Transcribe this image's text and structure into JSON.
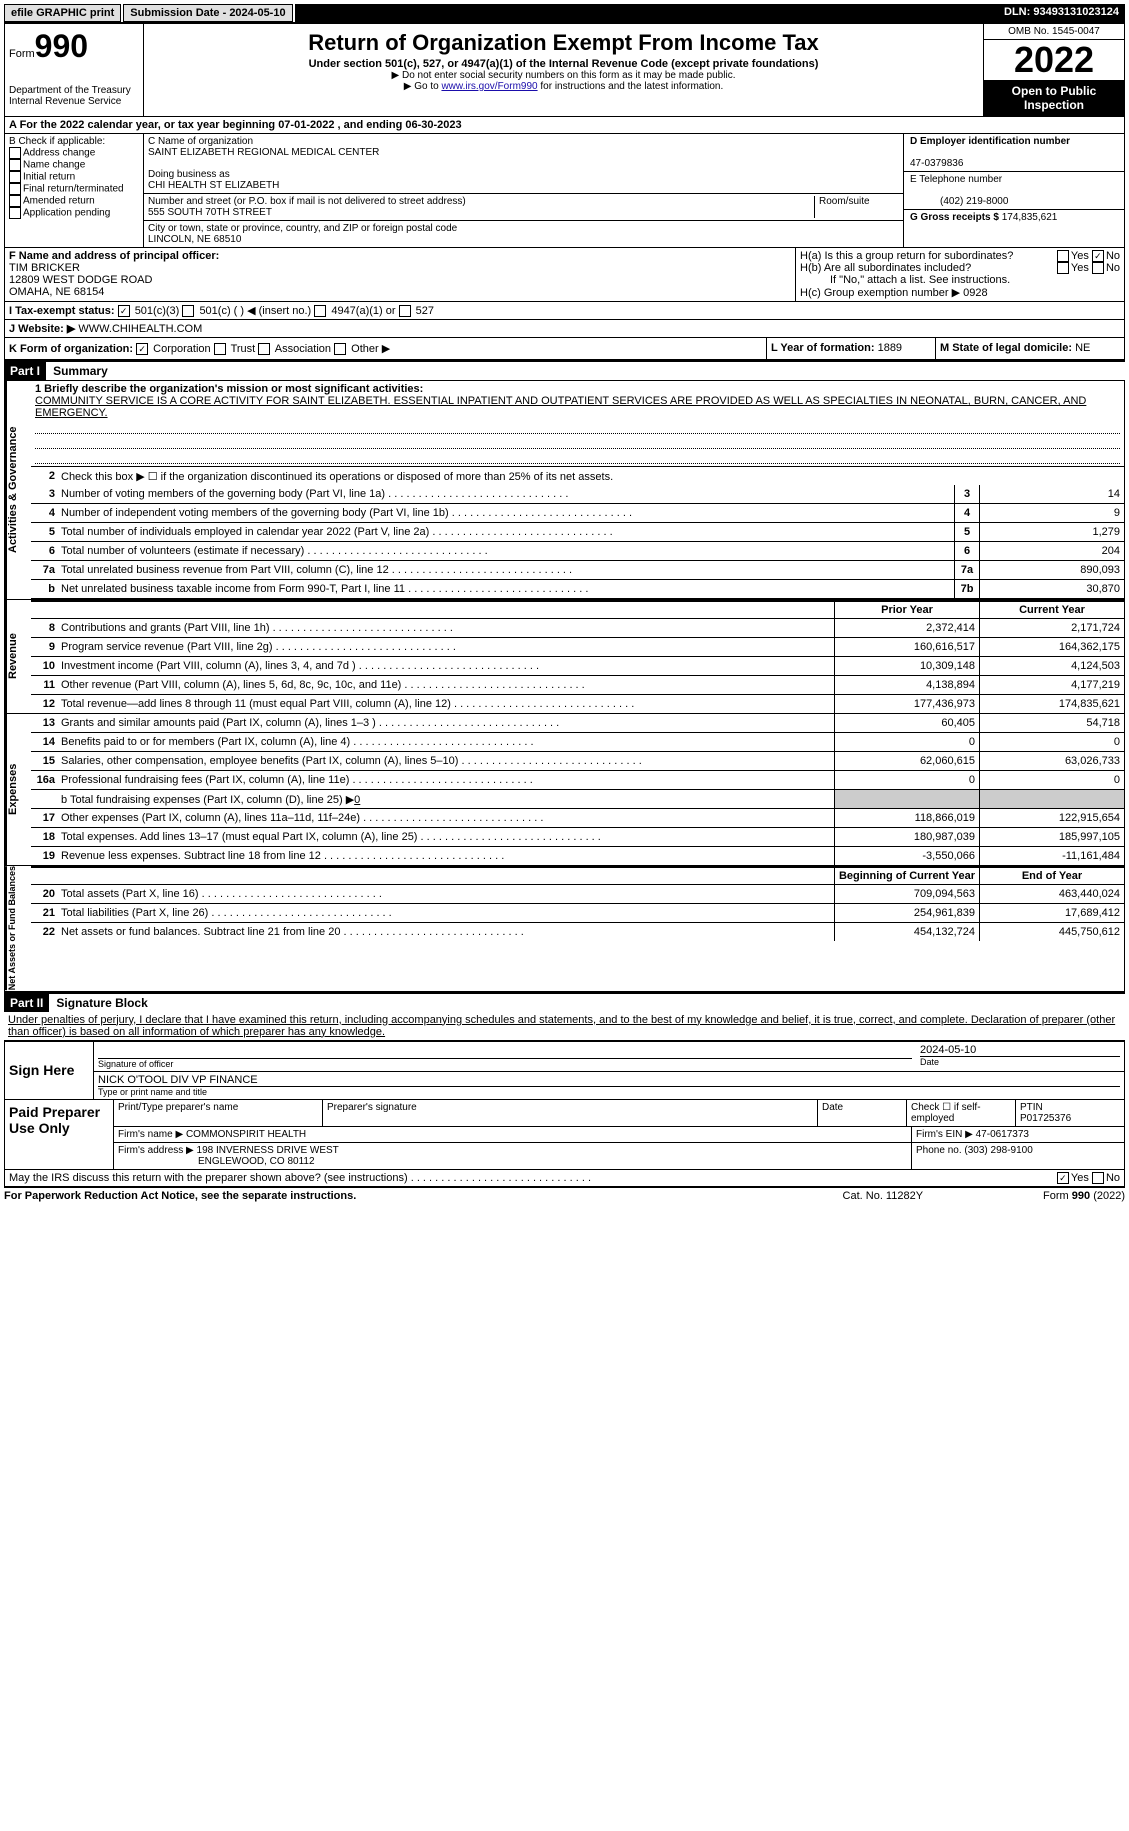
{
  "topbar": {
    "efile": "efile GRAPHIC print",
    "submission_label": "Submission Date - 2024-05-10",
    "dln": "DLN: 93493131023124"
  },
  "header": {
    "form_word": "Form",
    "form_num": "990",
    "dept": "Department of the Treasury",
    "irs": "Internal Revenue Service",
    "title": "Return of Organization Exempt From Income Tax",
    "subtitle": "Under section 501(c), 527, or 4947(a)(1) of the Internal Revenue Code (except private foundations)",
    "note1": "▶ Do not enter social security numbers on this form as it may be made public.",
    "note2_pre": "▶ Go to ",
    "note2_link": "www.irs.gov/Form990",
    "note2_post": " for instructions and the latest information.",
    "omb": "OMB No. 1545-0047",
    "year": "2022",
    "inspect": "Open to Public Inspection"
  },
  "rowA": "A  For the 2022 calendar year, or tax year beginning 07-01-2022    , and ending 06-30-2023",
  "colB": {
    "label": "B Check if applicable:",
    "items": [
      "Address change",
      "Name change",
      "Initial return",
      "Final return/terminated",
      "Amended return",
      "Application pending"
    ]
  },
  "colC": {
    "name_label": "C Name of organization",
    "name": "SAINT ELIZABETH REGIONAL MEDICAL CENTER",
    "dba_label": "Doing business as",
    "dba": "CHI HEALTH ST ELIZABETH",
    "street_label": "Number and street (or P.O. box if mail is not delivered to street address)",
    "street": "555 SOUTH 70TH STREET",
    "room_label": "Room/suite",
    "city_label": "City or town, state or province, country, and ZIP or foreign postal code",
    "city": "LINCOLN, NE  68510"
  },
  "colD": {
    "ein_label": "D Employer identification number",
    "ein": "47-0379836",
    "tel_label": "E Telephone number",
    "tel": "(402) 219-8000",
    "gross_label": "G Gross receipts $",
    "gross": "174,835,621"
  },
  "colF": {
    "label": "F  Name and address of principal officer:",
    "name": "TIM BRICKER",
    "addr1": "12809 WEST DODGE ROAD",
    "addr2": "OMAHA, NE  68154"
  },
  "colH": {
    "ha": "H(a)  Is this a group return for subordinates?",
    "hb": "H(b)  Are all subordinates included?",
    "hb_note": "If \"No,\" attach a list. See instructions.",
    "hc": "H(c)  Group exemption number ▶",
    "hc_val": "0928"
  },
  "rowI": {
    "label": "I   Tax-exempt status:",
    "opt1": "501(c)(3)",
    "opt2": "501(c) (  ) ◀ (insert no.)",
    "opt3": "4947(a)(1) or",
    "opt4": "527"
  },
  "rowJ": {
    "label": "J   Website: ▶",
    "val": "WWW.CHIHEALTH.COM"
  },
  "rowK": {
    "k": "K Form of organization:",
    "opts": [
      "Corporation",
      "Trust",
      "Association",
      "Other ▶"
    ],
    "l": "L Year of formation:",
    "l_val": "1889",
    "m": "M State of legal domicile:",
    "m_val": "NE"
  },
  "part1": {
    "hdr": "Part I",
    "title": "Summary",
    "mission_label": "1   Briefly describe the organization's mission or most significant activities:",
    "mission": "COMMUNITY SERVICE IS A CORE ACTIVITY FOR SAINT ELIZABETH. ESSENTIAL INPATIENT AND OUTPATIENT SERVICES ARE PROVIDED AS WELL AS SPECIALTIES IN NEONATAL, BURN, CANCER, AND EMERGENCY.",
    "line2": "Check this box ▶ ☐  if the organization discontinued its operations or disposed of more than 25% of its net assets.",
    "lines_a": [
      {
        "n": "3",
        "d": "Number of voting members of the governing body (Part VI, line 1a)",
        "b": "3",
        "v": "14"
      },
      {
        "n": "4",
        "d": "Number of independent voting members of the governing body (Part VI, line 1b)",
        "b": "4",
        "v": "9"
      },
      {
        "n": "5",
        "d": "Total number of individuals employed in calendar year 2022 (Part V, line 2a)",
        "b": "5",
        "v": "1,279"
      },
      {
        "n": "6",
        "d": "Total number of volunteers (estimate if necessary)",
        "b": "6",
        "v": "204"
      },
      {
        "n": "7a",
        "d": "Total unrelated business revenue from Part VIII, column (C), line 12",
        "b": "7a",
        "v": "890,093"
      },
      {
        "n": "b",
        "d": "Net unrelated business taxable income from Form 990-T, Part I, line 11",
        "b": "7b",
        "v": "30,870"
      }
    ],
    "hdr_prior": "Prior Year",
    "hdr_curr": "Current Year",
    "revenue": [
      {
        "n": "8",
        "d": "Contributions and grants (Part VIII, line 1h)",
        "p": "2,372,414",
        "c": "2,171,724"
      },
      {
        "n": "9",
        "d": "Program service revenue (Part VIII, line 2g)",
        "p": "160,616,517",
        "c": "164,362,175"
      },
      {
        "n": "10",
        "d": "Investment income (Part VIII, column (A), lines 3, 4, and 7d )",
        "p": "10,309,148",
        "c": "4,124,503"
      },
      {
        "n": "11",
        "d": "Other revenue (Part VIII, column (A), lines 5, 6d, 8c, 9c, 10c, and 11e)",
        "p": "4,138,894",
        "c": "4,177,219"
      },
      {
        "n": "12",
        "d": "Total revenue—add lines 8 through 11 (must equal Part VIII, column (A), line 12)",
        "p": "177,436,973",
        "c": "174,835,621"
      }
    ],
    "expenses": [
      {
        "n": "13",
        "d": "Grants and similar amounts paid (Part IX, column (A), lines 1–3 )",
        "p": "60,405",
        "c": "54,718"
      },
      {
        "n": "14",
        "d": "Benefits paid to or for members (Part IX, column (A), line 4)",
        "p": "0",
        "c": "0"
      },
      {
        "n": "15",
        "d": "Salaries, other compensation, employee benefits (Part IX, column (A), lines 5–10)",
        "p": "62,060,615",
        "c": "63,026,733"
      },
      {
        "n": "16a",
        "d": "Professional fundraising fees (Part IX, column (A), line 11e)",
        "p": "0",
        "c": "0"
      }
    ],
    "line16b": "b  Total fundraising expenses (Part IX, column (D), line 25) ▶",
    "line16b_val": "0",
    "expenses2": [
      {
        "n": "17",
        "d": "Other expenses (Part IX, column (A), lines 11a–11d, 11f–24e)",
        "p": "118,866,019",
        "c": "122,915,654"
      },
      {
        "n": "18",
        "d": "Total expenses. Add lines 13–17 (must equal Part IX, column (A), line 25)",
        "p": "180,987,039",
        "c": "185,997,105"
      },
      {
        "n": "19",
        "d": "Revenue less expenses. Subtract line 18 from line 12",
        "p": "-3,550,066",
        "c": "-11,161,484"
      }
    ],
    "hdr_begin": "Beginning of Current Year",
    "hdr_end": "End of Year",
    "netassets": [
      {
        "n": "20",
        "d": "Total assets (Part X, line 16)",
        "p": "709,094,563",
        "c": "463,440,024"
      },
      {
        "n": "21",
        "d": "Total liabilities (Part X, line 26)",
        "p": "254,961,839",
        "c": "17,689,412"
      },
      {
        "n": "22",
        "d": "Net assets or fund balances. Subtract line 21 from line 20",
        "p": "454,132,724",
        "c": "445,750,612"
      }
    ],
    "vtab_ag": "Activities & Governance",
    "vtab_rev": "Revenue",
    "vtab_exp": "Expenses",
    "vtab_na": "Net Assets or Fund Balances"
  },
  "part2": {
    "hdr": "Part II",
    "title": "Signature Block",
    "decl": "Under penalties of perjury, I declare that I have examined this return, including accompanying schedules and statements, and to the best of my knowledge and belief, it is true, correct, and complete. Declaration of preparer (other than officer) is based on all information of which preparer has any knowledge.",
    "sign_here": "Sign Here",
    "sig_officer": "Signature of officer",
    "sig_date": "2024-05-10",
    "date_label": "Date",
    "officer_name": "NICK O'TOOL  DIV VP FINANCE",
    "officer_label": "Type or print name and title",
    "paid_label": "Paid Preparer Use Only",
    "prep_name_label": "Print/Type preparer's name",
    "prep_sig_label": "Preparer's signature",
    "prep_date_label": "Date",
    "prep_check": "Check ☐ if self-employed",
    "ptin_label": "PTIN",
    "ptin": "P01725376",
    "firm_name_label": "Firm's name    ▶",
    "firm_name": "COMMONSPIRIT HEALTH",
    "firm_ein_label": "Firm's EIN ▶",
    "firm_ein": "47-0617373",
    "firm_addr_label": "Firm's address ▶",
    "firm_addr1": "198 INVERNESS DRIVE WEST",
    "firm_addr2": "ENGLEWOOD, CO  80112",
    "firm_phone_label": "Phone no.",
    "firm_phone": "(303) 298-9100",
    "discuss": "May the IRS discuss this return with the preparer shown above? (see instructions)"
  },
  "footer": {
    "left": "For Paperwork Reduction Act Notice, see the separate instructions.",
    "mid": "Cat. No. 11282Y",
    "right": "Form 990 (2022)"
  }
}
